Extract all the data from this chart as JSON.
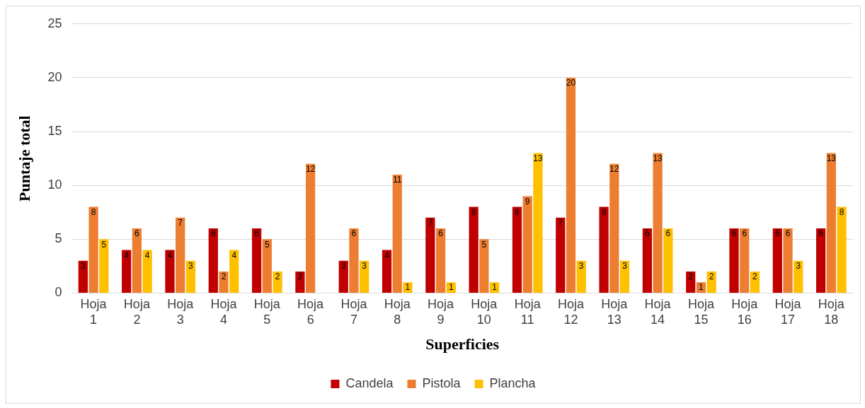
{
  "chart_data": {
    "type": "bar",
    "xlabel": "Superficies",
    "ylabel": "Puntaje total",
    "categories": [
      "Hoja 1",
      "Hoja 2",
      "Hoja 3",
      "Hoja 4",
      "Hoja 5",
      "Hoja 6",
      "Hoja 7",
      "Hoja 8",
      "Hoja 9",
      "Hoja 10",
      "Hoja 11",
      "Hoja 12",
      "Hoja 13",
      "Hoja 14",
      "Hoja 15",
      "Hoja 16",
      "Hoja 17",
      "Hoja 18"
    ],
    "series": [
      {
        "name": "Candela",
        "color": "#c00000",
        "values": [
          3,
          4,
          4,
          6,
          6,
          2,
          3,
          4,
          7,
          8,
          8,
          7,
          8,
          6,
          2,
          6,
          6,
          6
        ]
      },
      {
        "name": "Pistola",
        "color": "#ed7d31",
        "values": [
          8,
          6,
          7,
          2,
          5,
          12,
          6,
          11,
          6,
          5,
          9,
          20,
          12,
          13,
          1,
          6,
          6,
          13
        ]
      },
      {
        "name": "Plancha",
        "color": "#ffc000",
        "values": [
          5,
          4,
          3,
          4,
          2,
          null,
          3,
          1,
          1,
          1,
          13,
          3,
          3,
          6,
          2,
          2,
          3,
          8
        ]
      }
    ],
    "ylim": [
      0,
      25
    ],
    "yticks": [
      0,
      5,
      10,
      15,
      20,
      25
    ],
    "grid": "y",
    "legend": "bottom",
    "data_labels": true
  }
}
